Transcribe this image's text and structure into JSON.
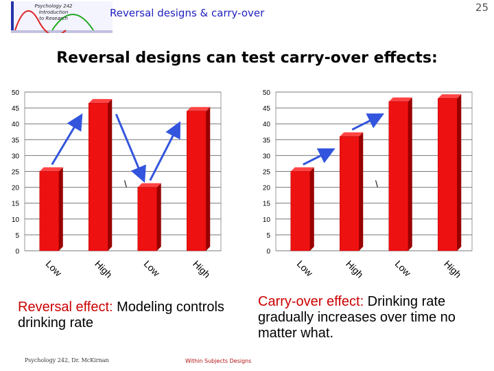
{
  "header": {
    "logo_lines": [
      "Psychology 242",
      "Introduction",
      "to Research"
    ],
    "slide_title": "Reversal designs & carry-over",
    "page_number": "25"
  },
  "heading": "Reversal designs can test carry-over effects:",
  "colors": {
    "bar": "#ee1111",
    "bar_top": "#ff4444",
    "bar_side": "#990000",
    "arrow": "#3355dd"
  },
  "chart_data": [
    {
      "type": "bar",
      "categories": [
        "Low",
        "High",
        "Low",
        "High"
      ],
      "values": [
        25,
        46.5,
        20,
        44
      ],
      "ylim": [
        0,
        50
      ],
      "yticks": [
        0,
        5,
        10,
        15,
        20,
        25,
        30,
        35,
        40,
        45,
        50
      ],
      "annotation": "\\",
      "arrows": [
        {
          "from": 0,
          "to": 1,
          "direction": "up"
        },
        {
          "from": 1,
          "to": 2,
          "direction": "down"
        },
        {
          "from": 2,
          "to": 3,
          "direction": "up"
        }
      ]
    },
    {
      "type": "bar",
      "categories": [
        "Low",
        "High",
        "Low",
        "High"
      ],
      "values": [
        25,
        36,
        47,
        48
      ],
      "ylim": [
        0,
        50
      ],
      "yticks": [
        0,
        5,
        10,
        15,
        20,
        25,
        30,
        35,
        40,
        45,
        50
      ],
      "annotation": "\\",
      "arrows": [
        {
          "from": 0,
          "to": 1,
          "direction": "up"
        },
        {
          "from": 1,
          "to": 2,
          "direction": "up"
        }
      ]
    }
  ],
  "captions": {
    "left": {
      "lead": "Reversal effect:",
      "text": " Modeling controls drinking rate"
    },
    "right": {
      "lead": "Carry-over effect:",
      "text": " Drinking rate gradually increases over time no matter what."
    }
  },
  "footer": {
    "left": "Psychology 242, Dr. McKirnan",
    "center": "Within Subjects Designs"
  }
}
